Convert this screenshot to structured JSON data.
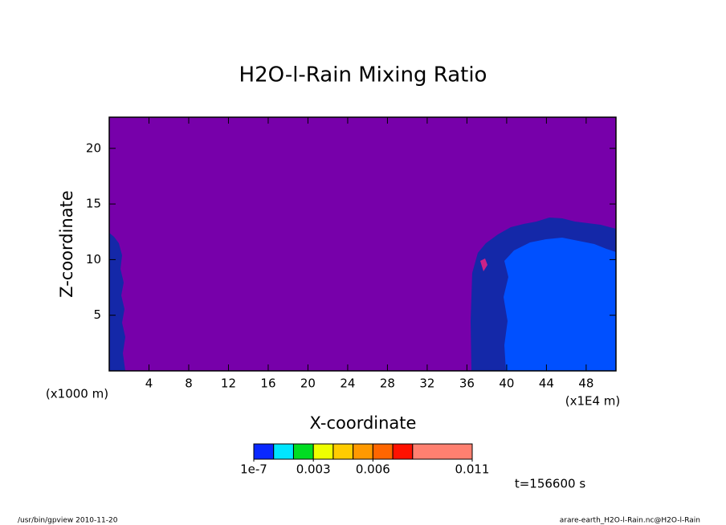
{
  "chart_data": {
    "type": "contour",
    "title": "H2O-l-Rain Mixing Ratio",
    "x_label": "X-coordinate",
    "y_label": "Z-coordinate",
    "x_unit": "(x1E4 m)",
    "y_unit": "(x1000 m)",
    "xlim": [
      0,
      51
    ],
    "ylim": [
      0,
      22.8
    ],
    "xticks": [
      4,
      8,
      12,
      16,
      20,
      24,
      28,
      32,
      36,
      40,
      44,
      48
    ],
    "yticks": [
      5,
      10,
      15,
      20
    ],
    "background_color": "#7700aa",
    "colorbar": {
      "levels": [
        1e-07,
        0.001,
        0.002,
        0.003,
        0.004,
        0.005,
        0.006,
        0.007,
        0.008,
        0.011
      ],
      "colors": [
        "#0a28ff",
        "#00e5ff",
        "#00dd22",
        "#eeff00",
        "#ffcc00",
        "#ff9900",
        "#ff6600",
        "#ff1100",
        "#ff8070"
      ],
      "ticks": [
        {
          "value": 1e-07,
          "label": "1e-7"
        },
        {
          "value": 0.003,
          "label": "0.003"
        },
        {
          "value": 0.006,
          "label": "0.006"
        },
        {
          "value": 0.011,
          "label": "0.011"
        }
      ]
    },
    "time_label": "t=156600 s",
    "footer_left": "/usr/bin/gpview  2010-11-20",
    "footer_right": "arare-earth_H2O-l-Rain.nc@H2O-l-Rain"
  }
}
